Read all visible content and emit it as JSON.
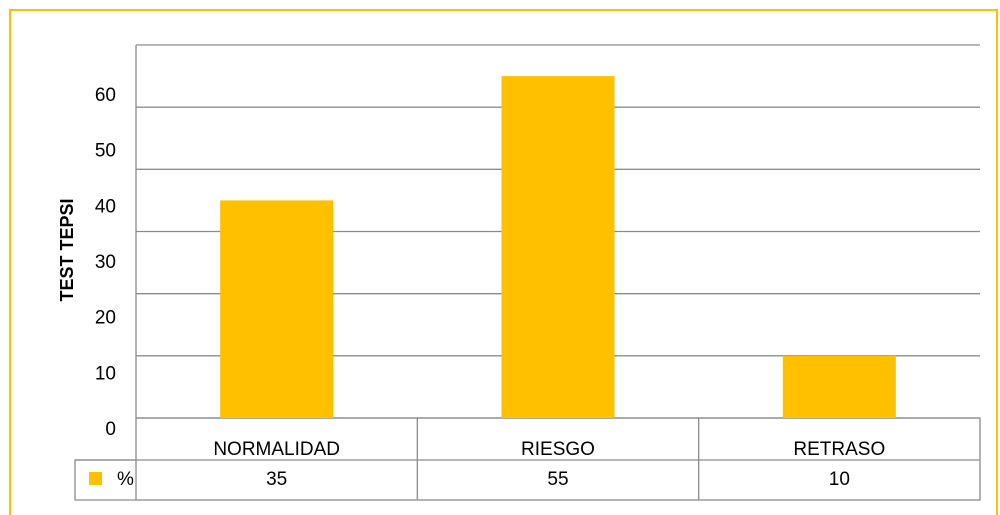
{
  "chart_data": {
    "type": "bar",
    "y_label": "TEST TEPSI",
    "categories": [
      "NORMALIDAD",
      "RIESGO",
      "RETRASO"
    ],
    "series": [
      {
        "name": "%",
        "color": "#ffc000",
        "values": [
          35,
          55,
          10
        ]
      }
    ],
    "ylim": [
      0,
      60
    ],
    "yticks": [
      0,
      10,
      20,
      30,
      40,
      50,
      60
    ],
    "grid": true,
    "data_table": true
  }
}
